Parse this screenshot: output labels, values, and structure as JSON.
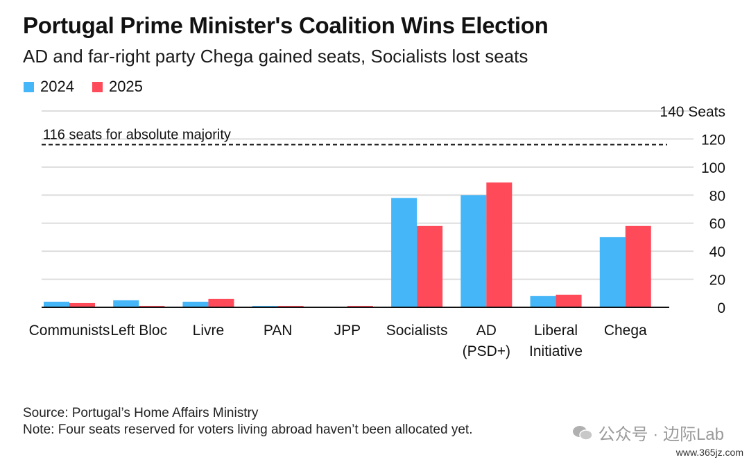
{
  "header": {
    "title": "Portugal Prime Minister's Coalition Wins Election",
    "subtitle": "AD and far-right party Chega gained seats, Socialists lost seats"
  },
  "colors": {
    "s2024": "#45B6F7",
    "s2025": "#FF4A5A",
    "grid": "#dddddd",
    "axis": "#111111"
  },
  "chart_data": {
    "type": "bar",
    "categories": [
      "Communists",
      "Left Bloc",
      "Livre",
      "PAN",
      "JPP",
      "Socialists",
      "AD\n(PSD+)",
      "Liberal\nInitiative",
      "Chega"
    ],
    "series": [
      {
        "name": "2024",
        "values": [
          4,
          5,
          4,
          1,
          0,
          78,
          80,
          8,
          50
        ]
      },
      {
        "name": "2025",
        "values": [
          3,
          1,
          6,
          1,
          1,
          58,
          89,
          9,
          58
        ]
      }
    ],
    "ylim": [
      0,
      140
    ],
    "yticks": [
      0,
      20,
      40,
      60,
      80,
      100,
      120,
      140
    ],
    "ytick_labels": [
      "0",
      "20",
      "40",
      "60",
      "80",
      "100",
      "120",
      "140 Seats"
    ],
    "y_axis_side": "right",
    "grid": true,
    "legend": "top-left",
    "reference_line": {
      "value": 116,
      "label": "116 seats for absolute majority",
      "style": "dashed"
    }
  },
  "footer": {
    "source": "Source: Portugal’s Home Affairs Ministry",
    "note": "Note: Four seats reserved for voters living abroad haven’t been allocated yet."
  },
  "watermark": {
    "text": "公众号 · 边际Lab",
    "site": "www.365jz.com"
  }
}
